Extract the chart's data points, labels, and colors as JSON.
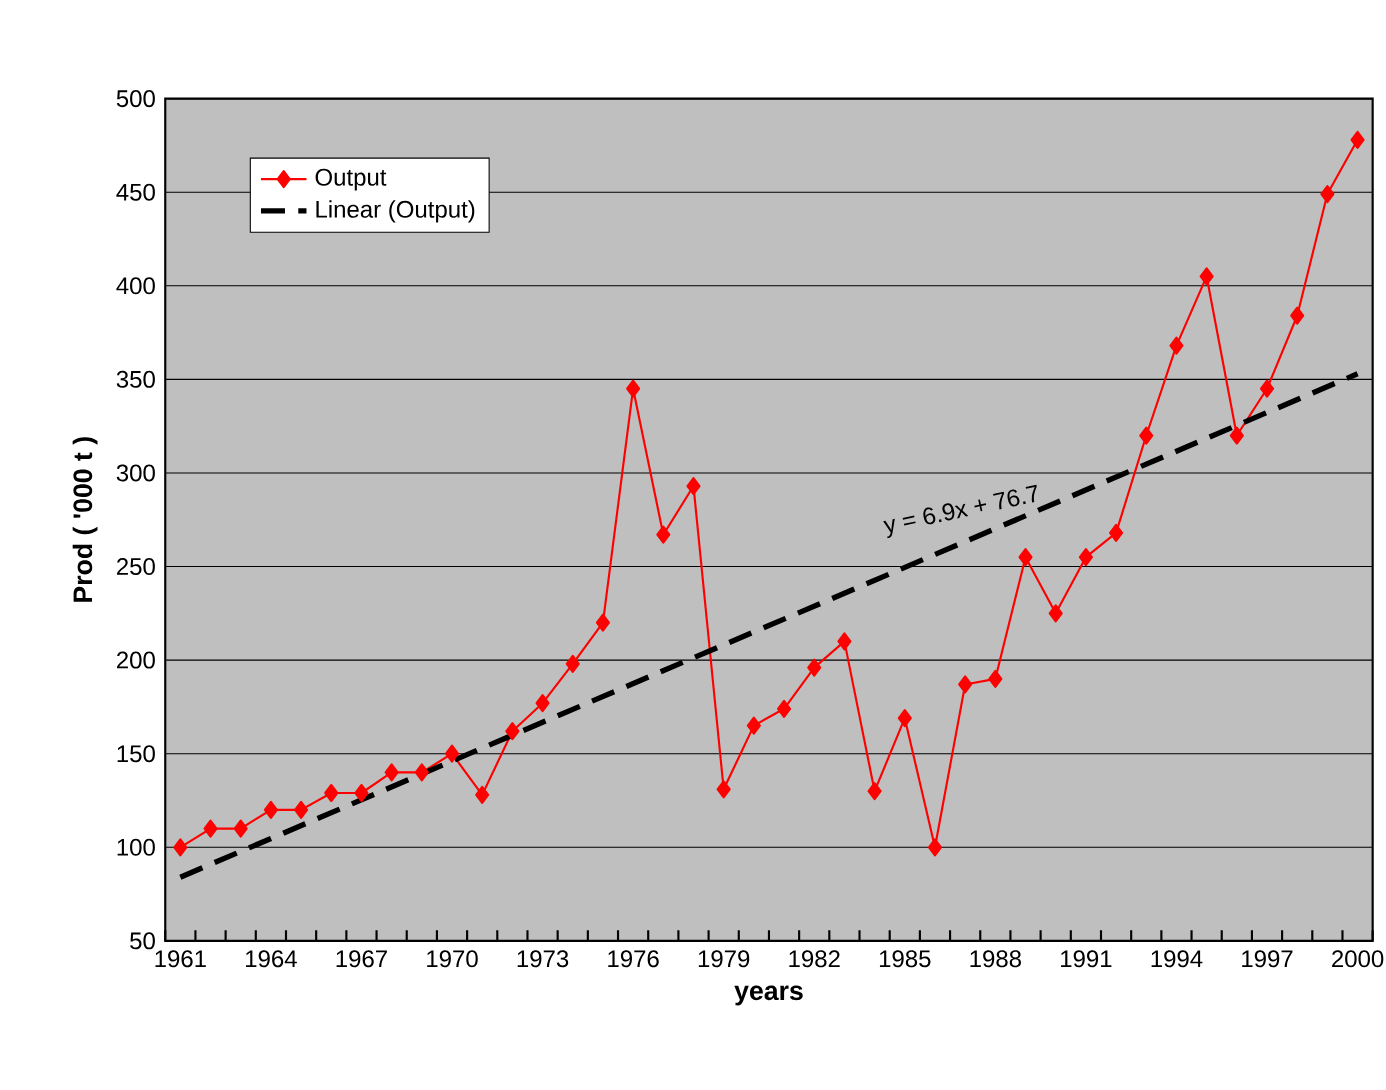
{
  "chart_data": {
    "type": "line",
    "xlabel": "years",
    "ylabel": "Prod ( '000 t )",
    "x": [
      1961,
      1962,
      1963,
      1964,
      1965,
      1966,
      1967,
      1968,
      1969,
      1970,
      1971,
      1972,
      1973,
      1974,
      1975,
      1976,
      1977,
      1978,
      1979,
      1980,
      1981,
      1982,
      1983,
      1984,
      1985,
      1986,
      1987,
      1988,
      1989,
      1990,
      1991,
      1992,
      1993,
      1994,
      1995,
      1996,
      1997,
      1998,
      1999,
      2000
    ],
    "series": [
      {
        "name": "Output",
        "color": "#ff0000",
        "marker": "diamond",
        "line_style": "solid",
        "values": [
          100,
          110,
          110,
          120,
          120,
          129,
          129,
          140,
          140,
          150,
          128,
          162,
          177,
          198,
          220,
          345,
          267,
          293,
          131,
          165,
          174,
          196,
          210,
          130,
          169,
          100,
          187,
          190,
          255,
          225,
          255,
          268,
          320,
          368,
          405,
          320,
          345,
          384,
          449,
          478
        ]
      },
      {
        "name": "Linear (Output)",
        "type": "line",
        "color": "#000000",
        "marker": "none",
        "line_style": "dashed",
        "x": [
          1961,
          2000
        ],
        "values": [
          84,
          353
        ]
      }
    ],
    "annotations": [
      "y = 6.9x + 76.7"
    ],
    "xlim": [
      1960.5,
      2000.5
    ],
    "xticks": [
      1961,
      1964,
      1967,
      1970,
      1973,
      1976,
      1979,
      1982,
      1985,
      1988,
      1991,
      1994,
      1997,
      2000
    ],
    "ylim": [
      50,
      500
    ],
    "yticks": [
      50,
      100,
      150,
      200,
      250,
      300,
      350,
      400,
      450,
      500
    ],
    "grid": "y",
    "legend": "top left"
  }
}
